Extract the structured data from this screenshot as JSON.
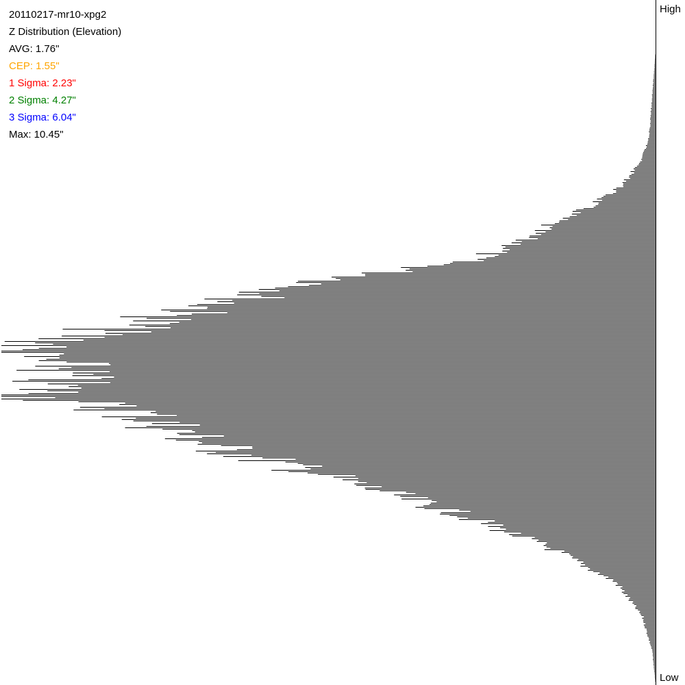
{
  "header": {
    "title": "20110217-mr10-xpg2",
    "subtitle": "Z Distribution (Elevation)",
    "stats": [
      {
        "label": "AVG: 1.76\"",
        "color": "#000000"
      },
      {
        "label": "CEP: 1.55\"",
        "color": "#ffa500"
      },
      {
        "label": "1 Sigma: 2.23\"",
        "color": "#ff0000"
      },
      {
        "label": "2 Sigma: 4.27\"",
        "color": "#008000"
      },
      {
        "label": "3 Sigma: 6.04\"",
        "color": "#0000ff"
      },
      {
        "label": "Max: 10.45\"",
        "color": "#000000"
      }
    ]
  },
  "axis": {
    "high_label": "High",
    "low_label": "Low"
  },
  "chart_data": {
    "type": "bar",
    "orientation": "horizontal",
    "bars_extend_from": "right",
    "title": "20110217-mr10-xpg2",
    "subtitle": "Z Distribution (Elevation)",
    "y_axis_top": "High",
    "y_axis_bottom": "Low",
    "value_profile": [
      {
        "position": 0.0,
        "value": 0.0
      },
      {
        "position": 0.07,
        "value": 0.0
      },
      {
        "position": 0.1,
        "value": 0.002
      },
      {
        "position": 0.2,
        "value": 0.01
      },
      {
        "position": 0.23,
        "value": 0.02
      },
      {
        "position": 0.27,
        "value": 0.05
      },
      {
        "position": 0.3,
        "value": 0.1
      },
      {
        "position": 0.33,
        "value": 0.17
      },
      {
        "position": 0.36,
        "value": 0.22
      },
      {
        "position": 0.38,
        "value": 0.29
      },
      {
        "position": 0.41,
        "value": 0.5
      },
      {
        "position": 0.44,
        "value": 0.65
      },
      {
        "position": 0.47,
        "value": 0.78
      },
      {
        "position": 0.5,
        "value": 0.93
      },
      {
        "position": 0.513,
        "value": 1.0
      },
      {
        "position": 0.535,
        "value": 0.9
      },
      {
        "position": 0.58,
        "value": 0.94
      },
      {
        "position": 0.6,
        "value": 0.8
      },
      {
        "position": 0.65,
        "value": 0.68
      },
      {
        "position": 0.7,
        "value": 0.48
      },
      {
        "position": 0.75,
        "value": 0.3
      },
      {
        "position": 0.8,
        "value": 0.16
      },
      {
        "position": 0.85,
        "value": 0.06
      },
      {
        "position": 0.9,
        "value": 0.02
      },
      {
        "position": 0.95,
        "value": 0.005
      },
      {
        "position": 1.0,
        "value": 0.0
      }
    ],
    "grid": false,
    "legend": "none"
  }
}
